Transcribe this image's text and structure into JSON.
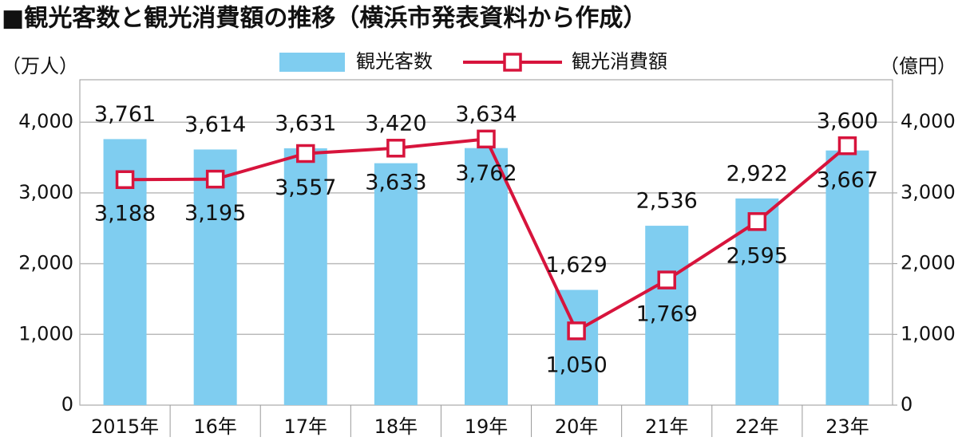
{
  "chart_data": {
    "type": "bar+line",
    "title": "■観光客数と観光消費額の推移（横浜市発表資料から作成）",
    "y_label": "（万人）",
    "y2_label": "（億円）",
    "categories": [
      "2015年",
      "16年",
      "17年",
      "18年",
      "19年",
      "20年",
      "21年",
      "22年",
      "23年"
    ],
    "series": [
      {
        "name": "観光客数",
        "type": "bar",
        "color": "#7fcdf0",
        "values": [
          3761,
          3614,
          3631,
          3420,
          3634,
          1629,
          2536,
          2922,
          3600
        ],
        "value_labels": [
          "3,761",
          "3,614",
          "3,631",
          "3,420",
          "3,634",
          "1,629",
          "2,536",
          "2,922",
          "3,600"
        ]
      },
      {
        "name": "観光消費額",
        "type": "line",
        "axis": "y2",
        "color": "#d7143c",
        "values": [
          3188,
          3195,
          3557,
          3633,
          3762,
          1050,
          1769,
          2595,
          3667
        ],
        "value_labels": [
          "3,188",
          "3,195",
          "3,557",
          "3,633",
          "3,762",
          "1,050",
          "1,769",
          "2,595",
          "3,667"
        ]
      }
    ],
    "ylim": [
      0,
      4600
    ],
    "yticks": [
      0,
      {
        "value": 1000,
        "label": "1,000"
      },
      {
        "value": 2000,
        "label": "2,000"
      },
      {
        "value": 3000,
        "label": "3,000"
      },
      {
        "value": 4000,
        "label": "4,000"
      }
    ],
    "y2lim": [
      0,
      4600
    ],
    "y2ticks": [
      0,
      {
        "value": 1000,
        "label": "1,000"
      },
      {
        "value": 2000,
        "label": "2,000"
      },
      {
        "value": 3000,
        "label": "3,000"
      },
      {
        "value": 4000,
        "label": "4,000"
      }
    ],
    "grid": true,
    "legend": "top"
  }
}
